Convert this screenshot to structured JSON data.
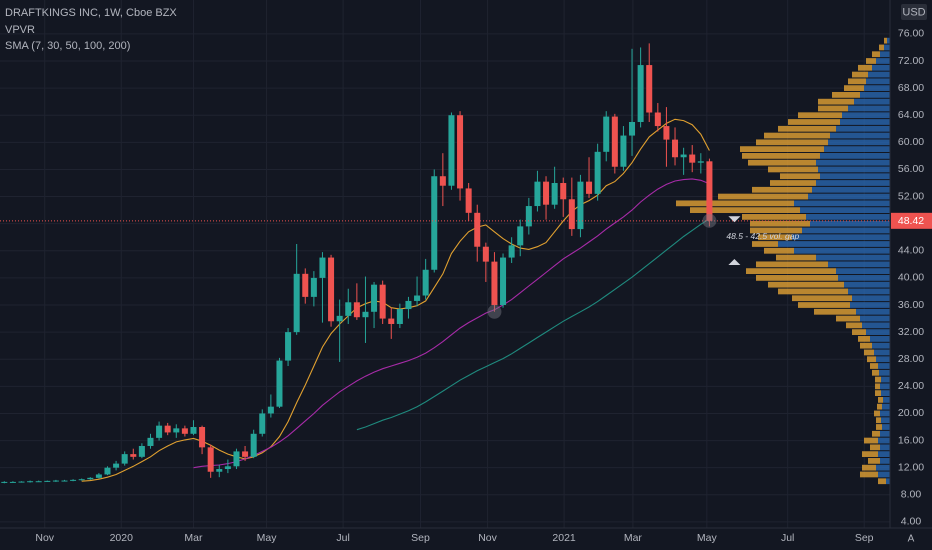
{
  "chart_data": {
    "type": "candlestick",
    "title": "DRAFTKINGS INC, 1W, Cboe BZX",
    "indicators": [
      "VPVR",
      "SMA (7, 30, 50, 100, 200)"
    ],
    "currency": "USD",
    "scale_button": "A",
    "up_color": "#26a69a",
    "down_color": "#ef5350",
    "grid": true,
    "xlim": [
      -0.5,
      103
    ],
    "xticks": [
      {
        "value": 4.7,
        "label": "Nov"
      },
      {
        "value": 13.6,
        "label": "2020"
      },
      {
        "value": 22,
        "label": "Mar"
      },
      {
        "value": 30.5,
        "label": "May"
      },
      {
        "value": 39.4,
        "label": "Jul"
      },
      {
        "value": 48.4,
        "label": "Sep"
      },
      {
        "value": 56.2,
        "label": "Nov"
      },
      {
        "value": 65.1,
        "label": "2021"
      },
      {
        "value": 73.1,
        "label": "Mar"
      },
      {
        "value": 81.7,
        "label": "May"
      },
      {
        "value": 91.1,
        "label": "Jul"
      },
      {
        "value": 100,
        "label": "Sep"
      }
    ],
    "ylim": [
      3.1,
      81
    ],
    "yticks": [
      {
        "value": 4,
        "label": "4.00"
      },
      {
        "value": 8,
        "label": "8.00"
      },
      {
        "value": 12,
        "label": "12.00"
      },
      {
        "value": 16,
        "label": "16.00"
      },
      {
        "value": 20,
        "label": "20.00"
      },
      {
        "value": 24,
        "label": "24.00"
      },
      {
        "value": 28,
        "label": "28.00"
      },
      {
        "value": 32,
        "label": "32.00"
      },
      {
        "value": 36,
        "label": "36.00"
      },
      {
        "value": 40,
        "label": "40.00"
      },
      {
        "value": 44,
        "label": "44.00"
      },
      {
        "value": 48,
        "label": "48.00"
      },
      {
        "value": 52,
        "label": "52.00"
      },
      {
        "value": 56,
        "label": "56.00"
      },
      {
        "value": 60,
        "label": "60.00"
      },
      {
        "value": 64,
        "label": "64.00"
      },
      {
        "value": 68,
        "label": "68.00"
      },
      {
        "value": 72,
        "label": "72.00"
      },
      {
        "value": 76,
        "label": "76.00"
      }
    ],
    "open": [
      9.8,
      9.9,
      9.9,
      9.95,
      10.0,
      10.0,
      10.05,
      10.1,
      10.1,
      10.2,
      10.3,
      10.5,
      11.0,
      12.0,
      12.6,
      14.0,
      13.6,
      15.2,
      16.4,
      18.2,
      17.2,
      17.8,
      17.0,
      18.0,
      15.0,
      11.4,
      11.8,
      12.2,
      14.4,
      13.6,
      17.0,
      20.0,
      21.0,
      27.8,
      32.0,
      40.6,
      37.2,
      40.0,
      43.0,
      33.6,
      34.4,
      36.4,
      34.2,
      35.0,
      39.0,
      34.0,
      33.2,
      35.4,
      36.6,
      37.4,
      41.2,
      55.0,
      53.6,
      64.0,
      53.2,
      49.6,
      44.6,
      42.4,
      36.0,
      43.0,
      44.8,
      47.6,
      50.6,
      54.2,
      50.8,
      54.0,
      51.6,
      47.2,
      54.2,
      52.4,
      58.6,
      63.8,
      56.4,
      61.0,
      63.0,
      71.4,
      64.4,
      62.4,
      60.4,
      57.8,
      58.2,
      57.0,
      57.2
    ],
    "high": [
      10.0,
      10.0,
      10.0,
      10.1,
      10.1,
      10.1,
      10.2,
      10.2,
      10.3,
      10.4,
      10.6,
      11.2,
      12.2,
      13.0,
      14.4,
      14.8,
      15.6,
      17.0,
      18.8,
      18.6,
      18.4,
      18.2,
      19.0,
      18.2,
      15.4,
      12.4,
      13.2,
      14.8,
      15.2,
      17.6,
      20.6,
      22.8,
      28.2,
      32.6,
      45.0,
      41.4,
      41.0,
      43.8,
      43.4,
      36.8,
      38.4,
      39.2,
      40.2,
      39.4,
      39.6,
      35.6,
      36.2,
      37.2,
      40.2,
      42.8,
      56.0,
      58.4,
      64.4,
      64.6,
      54.0,
      50.8,
      45.2,
      43.8,
      43.6,
      46.0,
      48.6,
      51.8,
      55.8,
      55.0,
      56.4,
      54.8,
      54.8,
      55.2,
      57.8,
      59.8,
      64.6,
      64.2,
      62.4,
      73.8,
      74.0,
      74.6,
      65.8,
      65.2,
      62.2,
      59.2,
      59.6,
      58.4,
      57.6
    ],
    "low": [
      9.7,
      9.8,
      9.8,
      9.8,
      9.9,
      9.9,
      9.9,
      10.0,
      10.0,
      10.1,
      10.2,
      10.4,
      10.9,
      11.6,
      12.3,
      13.2,
      13.4,
      14.8,
      16.0,
      16.8,
      16.4,
      16.6,
      16.8,
      14.0,
      10.5,
      10.6,
      11.2,
      11.8,
      13.0,
      13.4,
      16.6,
      19.4,
      20.8,
      27.0,
      31.6,
      36.2,
      35.8,
      33.4,
      32.8,
      27.6,
      33.2,
      33.8,
      30.4,
      32.6,
      33.2,
      31.0,
      32.6,
      34.0,
      35.8,
      36.8,
      40.8,
      50.6,
      53.0,
      51.4,
      48.4,
      42.4,
      39.4,
      35.0,
      35.6,
      42.2,
      43.2,
      46.4,
      49.8,
      48.6,
      50.2,
      49.0,
      46.2,
      46.0,
      51.8,
      51.4,
      57.2,
      55.4,
      55.8,
      58.0,
      62.2,
      63.0,
      61.6,
      56.4,
      56.6,
      55.2,
      55.6,
      55.4,
      47.6
    ],
    "close": [
      9.9,
      9.9,
      9.95,
      10.0,
      10.0,
      10.05,
      10.1,
      10.1,
      10.2,
      10.3,
      10.5,
      11.0,
      12.0,
      12.6,
      14.0,
      13.6,
      15.2,
      16.4,
      18.2,
      17.2,
      17.8,
      17.0,
      18.0,
      15.0,
      11.4,
      11.8,
      12.2,
      14.4,
      13.6,
      17.0,
      20.0,
      21.0,
      27.8,
      32.0,
      40.6,
      37.2,
      40.0,
      43.0,
      33.6,
      34.4,
      36.4,
      34.2,
      35.0,
      39.0,
      34.0,
      33.2,
      35.4,
      36.6,
      37.4,
      41.2,
      55.0,
      53.6,
      64.0,
      53.2,
      49.6,
      44.6,
      42.4,
      36.0,
      43.0,
      44.8,
      47.6,
      50.6,
      54.2,
      50.8,
      54.0,
      51.6,
      47.2,
      54.2,
      52.4,
      58.6,
      63.8,
      56.4,
      61.0,
      63.0,
      71.4,
      64.4,
      62.4,
      60.4,
      57.8,
      58.2,
      57.0,
      57.2,
      48.42
    ],
    "overlays": [
      {
        "color": "#e0a030",
        "values": [
          null,
          null,
          null,
          null,
          null,
          null,
          null,
          null,
          null,
          10.0,
          10.1,
          10.3,
          10.6,
          11.0,
          11.6,
          12.2,
          12.9,
          13.6,
          14.5,
          15.2,
          15.8,
          16.1,
          16.3,
          15.9,
          15.3,
          14.6,
          14.0,
          13.6,
          13.3,
          13.6,
          14.2,
          15.1,
          16.6,
          18.8,
          21.6,
          24.2,
          27.0,
          29.8,
          31.8,
          33.2,
          34.4,
          35.6,
          36.2,
          36.6,
          36.4,
          35.6,
          35.4,
          35.6,
          35.9,
          36.6,
          38.6,
          40.6,
          43.6,
          45.4,
          46.8,
          47.5,
          47.8,
          46.8,
          45.8,
          45.0,
          44.4,
          44.2,
          44.6,
          45.2,
          46.8,
          48.4,
          49.8,
          50.8,
          51.4,
          52.2,
          53.6,
          54.2,
          55.4,
          57.0,
          59.0,
          60.8,
          61.8,
          62.8,
          63.4,
          63.2,
          62.6,
          61.2,
          58.8
        ]
      },
      {
        "color": "#a72ba8",
        "values": [
          null,
          null,
          null,
          null,
          null,
          null,
          null,
          null,
          null,
          null,
          null,
          null,
          null,
          null,
          null,
          null,
          null,
          null,
          null,
          null,
          null,
          null,
          12.0,
          12.2,
          12.3,
          12.4,
          12.6,
          12.9,
          13.3,
          13.8,
          14.4,
          15.0,
          15.8,
          16.7,
          17.8,
          18.9,
          20.0,
          21.2,
          22.2,
          23.2,
          24.0,
          24.8,
          25.5,
          26.1,
          26.6,
          27.0,
          27.4,
          27.8,
          28.3,
          28.9,
          29.7,
          30.6,
          31.6,
          32.6,
          33.4,
          34.1,
          34.8,
          35.3,
          36.0,
          36.8,
          37.8,
          38.8,
          39.8,
          40.8,
          41.8,
          42.8,
          43.6,
          44.4,
          45.3,
          46.2,
          47.2,
          48.1,
          49.0,
          50.0,
          51.2,
          52.2,
          53.1,
          53.8,
          54.3,
          54.5,
          54.6,
          54.4,
          53.9
        ]
      },
      {
        "color": "#1f8a7e",
        "values": [
          null,
          null,
          null,
          null,
          null,
          null,
          null,
          null,
          null,
          null,
          null,
          null,
          null,
          null,
          null,
          null,
          null,
          null,
          null,
          null,
          null,
          null,
          null,
          null,
          null,
          null,
          null,
          null,
          null,
          null,
          null,
          null,
          null,
          null,
          null,
          null,
          null,
          null,
          null,
          null,
          null,
          17.6,
          18.0,
          18.5,
          19.0,
          19.4,
          19.9,
          20.4,
          21.0,
          21.7,
          22.5,
          23.3,
          24.1,
          24.9,
          25.6,
          26.3,
          26.9,
          27.5,
          28.1,
          28.8,
          29.6,
          30.4,
          31.2,
          32.0,
          32.8,
          33.6,
          34.3,
          35.0,
          35.7,
          36.5,
          37.4,
          38.3,
          39.2,
          40.1,
          41.1,
          42.1,
          43.1,
          44.1,
          45.1,
          46.1,
          47.0,
          47.9,
          48.7
        ]
      }
    ],
    "volume_profile": {
      "up_color": "#2b6cb8",
      "down_color": "#e3a335",
      "levels": [
        10,
        11,
        12,
        13,
        14,
        15,
        16,
        17,
        18,
        19,
        20,
        21,
        22,
        23,
        24,
        25,
        26,
        27,
        28,
        29,
        30,
        31,
        32,
        33,
        34,
        35,
        36,
        37,
        38,
        39,
        40,
        41,
        42,
        43,
        44,
        45,
        46,
        47,
        48,
        49,
        50,
        51,
        52,
        53,
        54,
        55,
        56,
        57,
        58,
        59,
        60,
        61,
        62,
        63,
        64,
        65,
        66,
        67,
        68,
        69,
        70,
        71,
        72,
        73,
        74,
        75
      ],
      "up": [
        4,
        12,
        14,
        10,
        12,
        10,
        12,
        10,
        8,
        9,
        10,
        8,
        7,
        9,
        10,
        9,
        11,
        12,
        14,
        16,
        18,
        20,
        24,
        28,
        30,
        34,
        40,
        38,
        42,
        46,
        52,
        54,
        62,
        74,
        96,
        112,
        98,
        88,
        80,
        84,
        90,
        96,
        82,
        78,
        74,
        70,
        72,
        74,
        70,
        66,
        62,
        60,
        54,
        50,
        48,
        42,
        36,
        30,
        26,
        24,
        22,
        18,
        14,
        10,
        6,
        3
      ],
      "down": [
        8,
        18,
        14,
        12,
        16,
        10,
        14,
        8,
        6,
        5,
        6,
        5,
        5,
        6,
        5,
        6,
        7,
        8,
        9,
        10,
        12,
        12,
        14,
        16,
        24,
        42,
        52,
        60,
        70,
        76,
        82,
        90,
        72,
        40,
        30,
        26,
        34,
        52,
        60,
        64,
        110,
        118,
        90,
        60,
        46,
        40,
        50,
        68,
        78,
        84,
        72,
        66,
        58,
        52,
        44,
        30,
        36,
        28,
        20,
        18,
        16,
        14,
        10,
        8,
        5,
        3
      ]
    },
    "gap": {
      "label": "48.5 - 42.5 vol. gap",
      "from": 48.5,
      "to": 42.5
    }
  }
}
